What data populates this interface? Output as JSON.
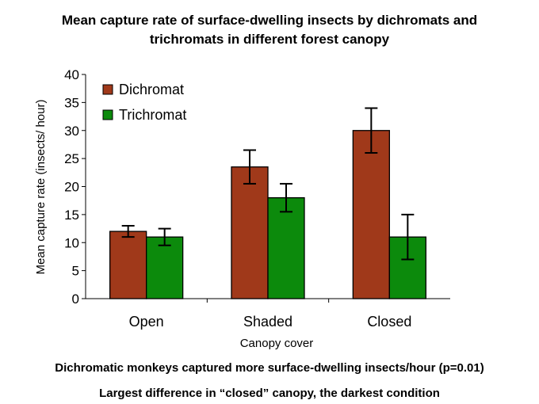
{
  "chart_data": {
    "type": "bar",
    "title_lines": [
      "Mean capture rate of surface-dwelling insects by dichromats and",
      "trichromats in different forest canopy"
    ],
    "xlabel": "Canopy cover",
    "ylabel": "Mean capture rate (insects/ hour)",
    "categories": [
      "Open",
      "Shaded",
      "Closed"
    ],
    "ylim": [
      0,
      40
    ],
    "yticks": [
      0,
      5,
      10,
      15,
      20,
      25,
      30,
      35,
      40
    ],
    "grid": false,
    "legend_position": "top-left",
    "series": [
      {
        "name": "Dichromat",
        "color": "#a0391a",
        "values": [
          12,
          23.5,
          30
        ],
        "error": [
          1,
          3,
          4
        ]
      },
      {
        "name": "Trichromat",
        "color": "#0c8a0c",
        "values": [
          11,
          18,
          11
        ],
        "error": [
          1.5,
          2.5,
          4
        ]
      }
    ]
  },
  "captions": [
    "Dichromatic monkeys captured more surface-dwelling insects/hour (p=0.01)",
    "Largest difference in “closed” canopy, the darkest condition"
  ]
}
